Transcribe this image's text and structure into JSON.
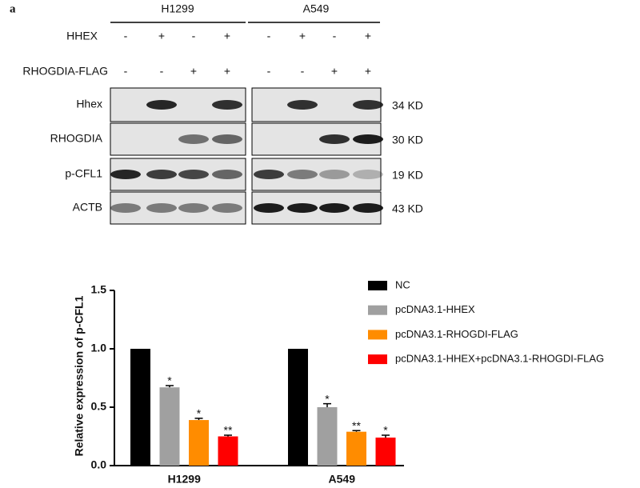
{
  "panel_label": "a",
  "blot": {
    "cell_lines": [
      "H1299",
      "A549"
    ],
    "conditions": [
      {
        "name": "HHEX",
        "signs": [
          "-",
          "+",
          "-",
          "+",
          "-",
          "+",
          "-",
          "+"
        ]
      },
      {
        "name": "RHOGDIA-FLAG",
        "signs": [
          "-",
          "-",
          "+",
          "+",
          "-",
          "-",
          "+",
          "+"
        ]
      }
    ],
    "bands": [
      {
        "name": "Hhex",
        "size": "34 KD"
      },
      {
        "name": "RHOGDIA",
        "size": "30 KD"
      },
      {
        "name": "p-CFL1",
        "size": "19 KD"
      },
      {
        "name": "ACTB",
        "size": "43 KD"
      }
    ]
  },
  "chart_data": {
    "type": "bar",
    "y_label": "Relative expression of p-CFL1",
    "categories": [
      "H1299",
      "A549"
    ],
    "ylim": [
      0,
      1.5
    ],
    "yticks": [
      {
        "value": 0,
        "label": "0.0"
      },
      0.5,
      {
        "value": 1,
        "label": "1.0"
      },
      1.5
    ],
    "series": [
      {
        "name": "NC",
        "color": "#000000",
        "values": [
          1,
          1
        ],
        "errors": [
          0,
          0
        ],
        "significance": [
          null,
          null
        ]
      },
      {
        "name": "pcDNA3.1-HHEX",
        "color": "#a0a0a0",
        "values": [
          0.67,
          0.5
        ],
        "errors": [
          0.015,
          0.03
        ],
        "significance": [
          "*",
          "*"
        ]
      },
      {
        "name": "pcDNA3.1-RHOGDI-FLAG",
        "color": "#ff8c00",
        "values": [
          0.39,
          0.29
        ],
        "errors": [
          0.015,
          0.01
        ],
        "significance": [
          "*",
          "**"
        ]
      },
      {
        "name": "pcDNA3.1-HHEX+pcDNA3.1-RHOGDI-FLAG",
        "color": "#ff0000",
        "values": [
          0.25,
          0.24
        ],
        "errors": [
          0.01,
          0.02
        ],
        "significance": [
          "**",
          "*"
        ]
      }
    ]
  }
}
